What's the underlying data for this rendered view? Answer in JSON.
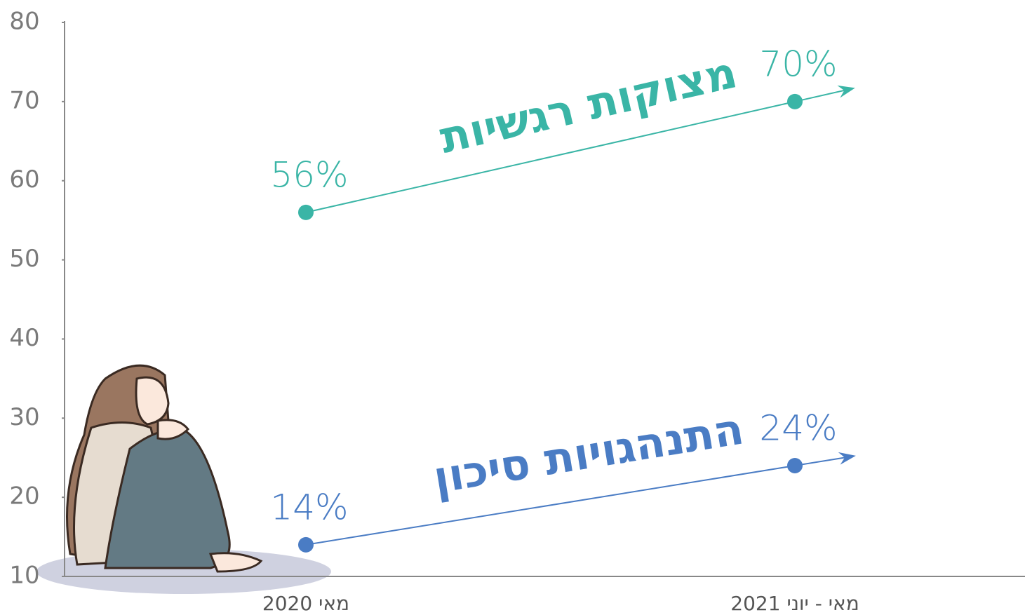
{
  "chart_data": {
    "type": "line",
    "categories": [
      "מאי 2020",
      "מאי - יוני 2021"
    ],
    "series": [
      {
        "name": "מצוקות רגשיות",
        "color": "#3ab5a6",
        "values": [
          56,
          70
        ],
        "value_labels": [
          "56%",
          "70%"
        ]
      },
      {
        "name": "התנהגויות סיכון",
        "color": "#4a7cc4",
        "values": [
          14,
          24
        ],
        "value_labels": [
          "14%",
          "24%"
        ]
      }
    ],
    "ylim": [
      10,
      80
    ],
    "yticks": [
      10,
      20,
      30,
      40,
      50,
      60,
      70,
      80
    ],
    "grid": false
  }
}
